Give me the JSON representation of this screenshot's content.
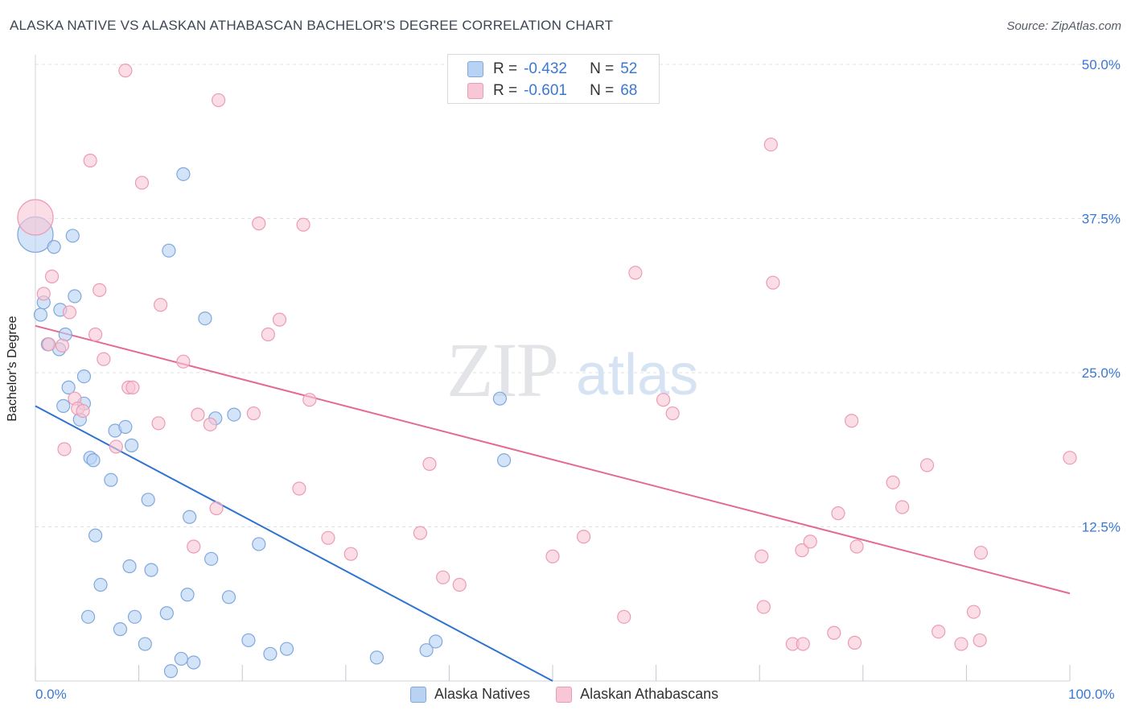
{
  "title": "ALASKA NATIVE VS ALASKAN ATHABASCAN BACHELOR'S DEGREE CORRELATION CHART",
  "source": "Source: ZipAtlas.com",
  "watermark": {
    "zip": "ZIP",
    "atlas": "atlas"
  },
  "legend": {
    "rows": [
      {
        "r_label": "R =",
        "r_value": "-0.432",
        "n_label": "N =",
        "n_value": "52"
      },
      {
        "r_label": "R =",
        "r_value": "-0.601",
        "n_label": "N =",
        "n_value": "68"
      }
    ]
  },
  "bottom_legend": [
    "Alaska Natives",
    "Alaskan Athabascans"
  ],
  "colors": {
    "blue_fill": "#b7d2f3",
    "blue_stroke": "#7fa8dd",
    "blue_line": "#2f72d0",
    "pink_fill": "#f8c6d5",
    "pink_stroke": "#ec9bb5",
    "pink_line": "#e46a92",
    "tick_text": "#3b78d4",
    "grid": "#dde1e6"
  },
  "chart_data": {
    "type": "scatter",
    "title": "ALASKA NATIVE VS ALASKAN ATHABASCAN BACHELOR'S DEGREE CORRELATION CHART",
    "xlabel": "",
    "ylabel": "Bachelor's Degree",
    "xlim": [
      0,
      100
    ],
    "ylim": [
      0,
      50
    ],
    "x_tick_labels": [
      "0.0%",
      "100.0%"
    ],
    "y_ticks": [
      12.5,
      25.0,
      37.5,
      50.0
    ],
    "y_tick_labels": [
      "12.5%",
      "25.0%",
      "37.5%",
      "50.0%"
    ],
    "legend_position": "top-center",
    "series": [
      {
        "name": "Alaska Natives",
        "r": -0.432,
        "n": 52,
        "trend": {
          "x": [
            0,
            50
          ],
          "y": [
            22.3,
            0
          ]
        },
        "points": [
          {
            "x": 0,
            "y": 36.2,
            "big": true
          },
          {
            "x": 0.5,
            "y": 29.7
          },
          {
            "x": 0.8,
            "y": 30.7
          },
          {
            "x": 1.2,
            "y": 27.3
          },
          {
            "x": 1.8,
            "y": 35.2
          },
          {
            "x": 2.3,
            "y": 26.9
          },
          {
            "x": 2.4,
            "y": 30.1
          },
          {
            "x": 2.7,
            "y": 22.3
          },
          {
            "x": 2.9,
            "y": 28.1
          },
          {
            "x": 3.2,
            "y": 23.8
          },
          {
            "x": 3.6,
            "y": 36.1
          },
          {
            "x": 3.8,
            "y": 31.2
          },
          {
            "x": 4.3,
            "y": 21.2
          },
          {
            "x": 4.7,
            "y": 24.7
          },
          {
            "x": 4.7,
            "y": 22.5
          },
          {
            "x": 5.1,
            "y": 5.2
          },
          {
            "x": 5.3,
            "y": 18.1
          },
          {
            "x": 5.6,
            "y": 17.9
          },
          {
            "x": 5.8,
            "y": 11.8
          },
          {
            "x": 6.3,
            "y": 7.8
          },
          {
            "x": 7.3,
            "y": 16.3
          },
          {
            "x": 7.7,
            "y": 20.3
          },
          {
            "x": 8.2,
            "y": 4.2
          },
          {
            "x": 8.7,
            "y": 20.6
          },
          {
            "x": 9.1,
            "y": 9.3
          },
          {
            "x": 9.3,
            "y": 19.1
          },
          {
            "x": 9.6,
            "y": 5.2
          },
          {
            "x": 10.6,
            "y": 3.0
          },
          {
            "x": 10.9,
            "y": 14.7
          },
          {
            "x": 11.2,
            "y": 9.0
          },
          {
            "x": 12.7,
            "y": 5.5
          },
          {
            "x": 12.9,
            "y": 34.9
          },
          {
            "x": 13.1,
            "y": 0.8
          },
          {
            "x": 14.1,
            "y": 1.8
          },
          {
            "x": 14.3,
            "y": 41.1
          },
          {
            "x": 14.7,
            "y": 7.0
          },
          {
            "x": 14.9,
            "y": 13.3
          },
          {
            "x": 15.3,
            "y": 1.5
          },
          {
            "x": 16.4,
            "y": 29.4
          },
          {
            "x": 17.0,
            "y": 9.9
          },
          {
            "x": 17.4,
            "y": 21.3
          },
          {
            "x": 18.7,
            "y": 6.8
          },
          {
            "x": 19.2,
            "y": 21.6
          },
          {
            "x": 20.6,
            "y": 3.3
          },
          {
            "x": 21.6,
            "y": 11.1
          },
          {
            "x": 22.7,
            "y": 2.2
          },
          {
            "x": 24.3,
            "y": 2.6
          },
          {
            "x": 33.0,
            "y": 1.9
          },
          {
            "x": 37.8,
            "y": 2.5
          },
          {
            "x": 38.7,
            "y": 3.2
          },
          {
            "x": 44.9,
            "y": 22.9
          },
          {
            "x": 45.3,
            "y": 17.9
          }
        ]
      },
      {
        "name": "Alaskan Athabascans",
        "r": -0.601,
        "n": 68,
        "trend": {
          "x": [
            0,
            100
          ],
          "y": [
            28.8,
            7.1
          ]
        },
        "points": [
          {
            "x": 0,
            "y": 37.6,
            "big": true
          },
          {
            "x": 0.8,
            "y": 31.4
          },
          {
            "x": 1.3,
            "y": 27.3
          },
          {
            "x": 1.6,
            "y": 32.8
          },
          {
            "x": 2.6,
            "y": 27.2
          },
          {
            "x": 2.8,
            "y": 18.8
          },
          {
            "x": 3.3,
            "y": 29.9
          },
          {
            "x": 3.8,
            "y": 22.9
          },
          {
            "x": 4.1,
            "y": 22.1
          },
          {
            "x": 4.6,
            "y": 21.9
          },
          {
            "x": 5.3,
            "y": 42.2
          },
          {
            "x": 5.8,
            "y": 28.1
          },
          {
            "x": 6.2,
            "y": 31.7
          },
          {
            "x": 6.6,
            "y": 26.1
          },
          {
            "x": 7.8,
            "y": 19.0
          },
          {
            "x": 8.7,
            "y": 49.5
          },
          {
            "x": 9.0,
            "y": 23.8
          },
          {
            "x": 9.4,
            "y": 23.8
          },
          {
            "x": 10.3,
            "y": 40.4
          },
          {
            "x": 11.9,
            "y": 20.9
          },
          {
            "x": 12.1,
            "y": 30.5
          },
          {
            "x": 14.3,
            "y": 25.9
          },
          {
            "x": 15.3,
            "y": 10.9
          },
          {
            "x": 15.7,
            "y": 21.6
          },
          {
            "x": 16.9,
            "y": 20.8
          },
          {
            "x": 17.5,
            "y": 14.0
          },
          {
            "x": 17.7,
            "y": 47.1
          },
          {
            "x": 21.1,
            "y": 21.7
          },
          {
            "x": 21.6,
            "y": 37.1
          },
          {
            "x": 22.5,
            "y": 28.1
          },
          {
            "x": 23.6,
            "y": 29.3
          },
          {
            "x": 25.5,
            "y": 15.6
          },
          {
            "x": 25.9,
            "y": 37.0
          },
          {
            "x": 26.5,
            "y": 22.8
          },
          {
            "x": 28.3,
            "y": 11.6
          },
          {
            "x": 30.5,
            "y": 10.3
          },
          {
            "x": 37.2,
            "y": 12.0
          },
          {
            "x": 38.1,
            "y": 17.6
          },
          {
            "x": 39.4,
            "y": 8.4
          },
          {
            "x": 41.0,
            "y": 7.8
          },
          {
            "x": 50.0,
            "y": 10.1
          },
          {
            "x": 53.0,
            "y": 11.7
          },
          {
            "x": 56.9,
            "y": 5.2
          },
          {
            "x": 58.0,
            "y": 33.1
          },
          {
            "x": 60.7,
            "y": 22.8
          },
          {
            "x": 61.6,
            "y": 21.7
          },
          {
            "x": 70.2,
            "y": 10.1
          },
          {
            "x": 70.4,
            "y": 6.0
          },
          {
            "x": 71.1,
            "y": 43.5
          },
          {
            "x": 71.3,
            "y": 32.3
          },
          {
            "x": 73.2,
            "y": 3.0
          },
          {
            "x": 74.2,
            "y": 3.0
          },
          {
            "x": 74.1,
            "y": 10.6
          },
          {
            "x": 74.9,
            "y": 11.3
          },
          {
            "x": 77.2,
            "y": 3.9
          },
          {
            "x": 77.6,
            "y": 13.6
          },
          {
            "x": 79.2,
            "y": 3.1
          },
          {
            "x": 79.4,
            "y": 10.9
          },
          {
            "x": 78.9,
            "y": 21.1
          },
          {
            "x": 82.9,
            "y": 16.1
          },
          {
            "x": 83.8,
            "y": 14.1
          },
          {
            "x": 86.2,
            "y": 17.5
          },
          {
            "x": 87.3,
            "y": 4.0
          },
          {
            "x": 89.5,
            "y": 3.0
          },
          {
            "x": 90.7,
            "y": 5.6
          },
          {
            "x": 91.3,
            "y": 3.3
          },
          {
            "x": 91.4,
            "y": 10.4
          },
          {
            "x": 100.0,
            "y": 18.1
          }
        ]
      }
    ]
  }
}
